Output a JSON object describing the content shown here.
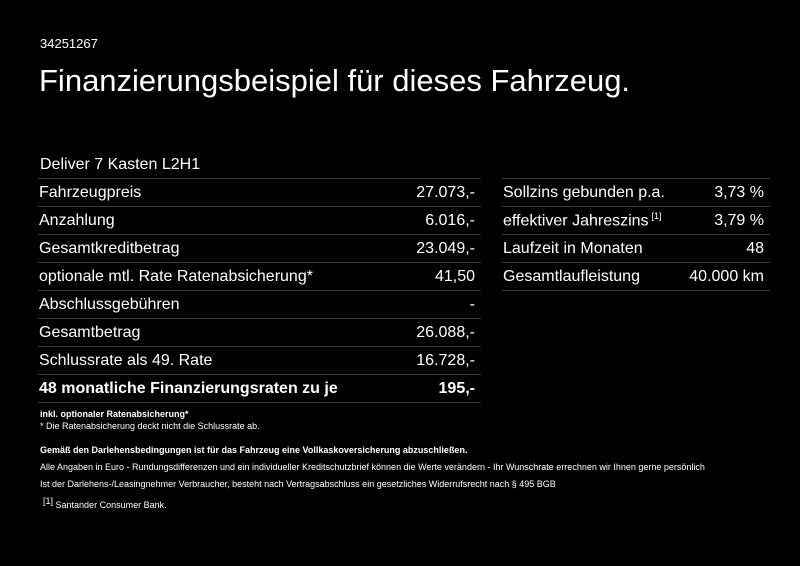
{
  "reference_number": "34251267",
  "headline": "Finanzierungsbeispiel für dieses Fahrzeug.",
  "model": "Deliver 7 Kasten L2H1",
  "left_table": [
    {
      "label": "Fahrzeugpreis",
      "value": "27.073,-"
    },
    {
      "label": "Anzahlung",
      "value": "6.016,-"
    },
    {
      "label": "Gesamtkreditbetrag",
      "value": "23.049,-"
    },
    {
      "label": "optionale mtl. Rate Ratenabsicherung*",
      "value": "41,50"
    },
    {
      "label": "Abschlussgebühren",
      "value": "-"
    },
    {
      "label": "Gesamtbetrag",
      "value": "26.088,-"
    },
    {
      "label": "Schlussrate als 49. Rate",
      "value": "16.728,-"
    },
    {
      "label": "48 monatliche Finanzierungsraten zu je",
      "value": "195,-"
    }
  ],
  "right_table": [
    {
      "label": "Sollzins gebunden p.a.",
      "value": "3,73 %"
    },
    {
      "label": "effektiver Jahreszins",
      "footnote": "[1]",
      "value": "3,79 %"
    },
    {
      "label": "Laufzeit in Monaten",
      "value": "48"
    },
    {
      "label": "Gesamtlaufleistung",
      "value": "40.000 km"
    }
  ],
  "notes": {
    "insurance_title": "inkl. optionaler Ratenabsicherung*",
    "insurance_note": "* Die Ratenabsicherung deckt nicht die Schlussrate ab.",
    "condition": "Gemäß den Darlehensbedingungen ist für das Fahrzeug eine Vollkaskoversicherung abzuschließen.",
    "disclaimer_1": "Alle Angaben in Euro - Rundungsdifferenzen und ein individueller Kreditschutzbrief können die Werte verändern - Ihr Wunschrate errechnen wir Ihnen gerne persönlich",
    "disclaimer_2": "Ist der Darlehens-/Leasingnehmer Verbraucher, besteht nach Vertragsabschluss ein gesetzliches Widerrufsrecht nach § 495 BGB",
    "footnote_mark": "[1]",
    "footnote_text": "Santander Consumer Bank."
  }
}
